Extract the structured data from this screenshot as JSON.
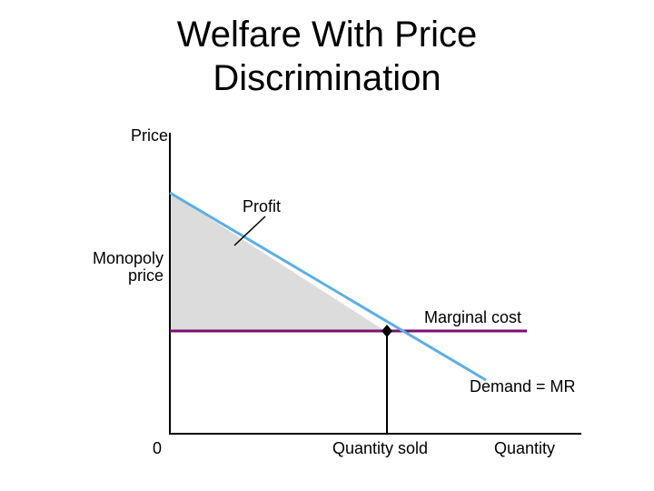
{
  "title": {
    "line1": "Welfare With Price",
    "line2": "Discrimination"
  },
  "labels": {
    "y_axis": "Price",
    "monopoly_line1": "Monopoly",
    "monopoly_line2": "price",
    "profit": "Profit",
    "marginal_cost": "Marginal cost",
    "demand": "Demand = MR",
    "origin": "0",
    "quantity_sold": "Quantity sold",
    "x_axis": "Quantity"
  },
  "colors": {
    "demand": "#5aaee6",
    "marginal_cost": "#7a0f6e",
    "profit_area": "#dcdcdc",
    "axes": "#000000"
  }
}
